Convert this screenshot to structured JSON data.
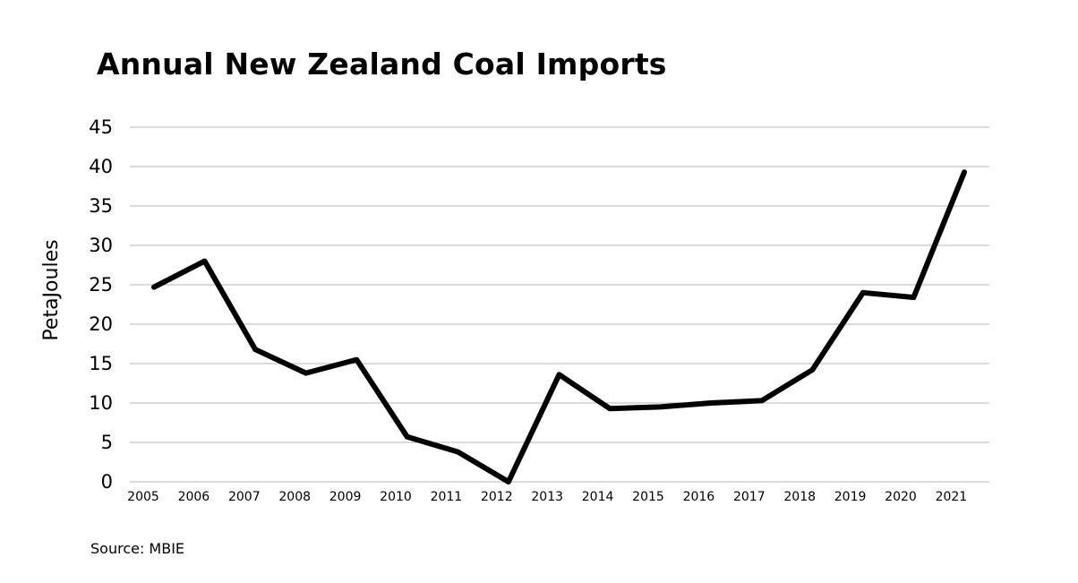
{
  "chart_data": {
    "type": "line",
    "title": "Annual New Zealand Coal Imports",
    "ylabel": "PetaJoules",
    "xlabel": "",
    "ylim": [
      0,
      45
    ],
    "yticks": [
      "0",
      "5",
      "10",
      "15",
      "20",
      "25",
      "30",
      "35",
      "40",
      "45"
    ],
    "categories": [
      "2005",
      "2006",
      "2007",
      "2008",
      "2009",
      "2010",
      "2011",
      "2012",
      "2013",
      "2014",
      "2015",
      "2016",
      "2017",
      "2018",
      "2019",
      "2020",
      "2021"
    ],
    "series": [
      {
        "values": [
          24.7,
          28.0,
          16.8,
          13.8,
          15.5,
          5.7,
          3.8,
          0.0,
          13.6,
          9.3,
          9.5,
          10.0,
          10.3,
          14.2,
          24.0,
          23.4,
          39.3
        ]
      }
    ],
    "grid": true,
    "line_color": "#000000",
    "grid_color": "#b5b5b5",
    "source": "Source: MBIE"
  }
}
